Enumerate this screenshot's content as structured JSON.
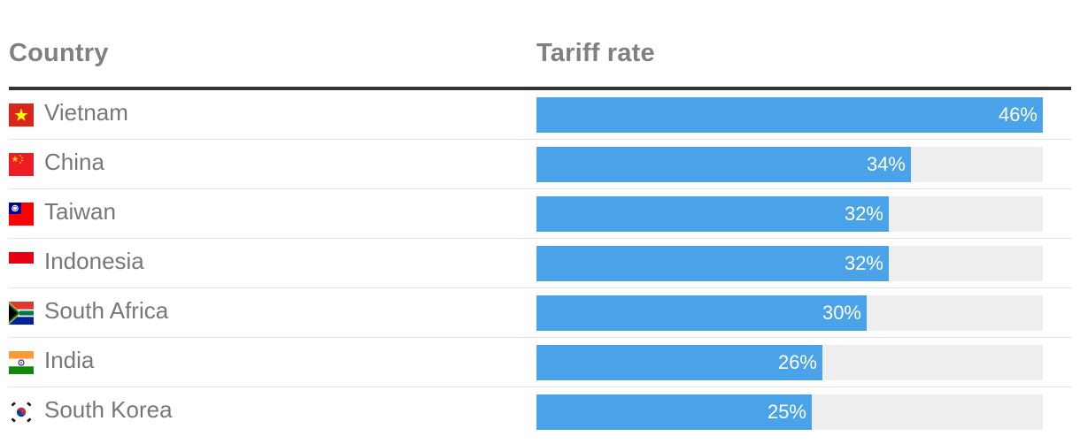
{
  "header": {
    "country": "Country",
    "rate": "Tariff rate"
  },
  "chart_data": {
    "type": "bar",
    "orientation": "horizontal",
    "xlim": [
      0,
      46
    ],
    "series_color": "#4aa3e8",
    "track_color": "#eeeeee",
    "rows": [
      {
        "country": "Vietnam",
        "flag": "vietnam-flag-icon",
        "value": 46,
        "label": "46%"
      },
      {
        "country": "China",
        "flag": "china-flag-icon",
        "value": 34,
        "label": "34%"
      },
      {
        "country": "Taiwan",
        "flag": "taiwan-flag-icon",
        "value": 32,
        "label": "32%"
      },
      {
        "country": "Indonesia",
        "flag": "indonesia-flag-icon",
        "value": 32,
        "label": "32%"
      },
      {
        "country": "South Africa",
        "flag": "south-africa-flag-icon",
        "value": 30,
        "label": "30%"
      },
      {
        "country": "India",
        "flag": "india-flag-icon",
        "value": 26,
        "label": "26%"
      },
      {
        "country": "South Korea",
        "flag": "south-korea-flag-icon",
        "value": 25,
        "label": "25%"
      }
    ]
  }
}
